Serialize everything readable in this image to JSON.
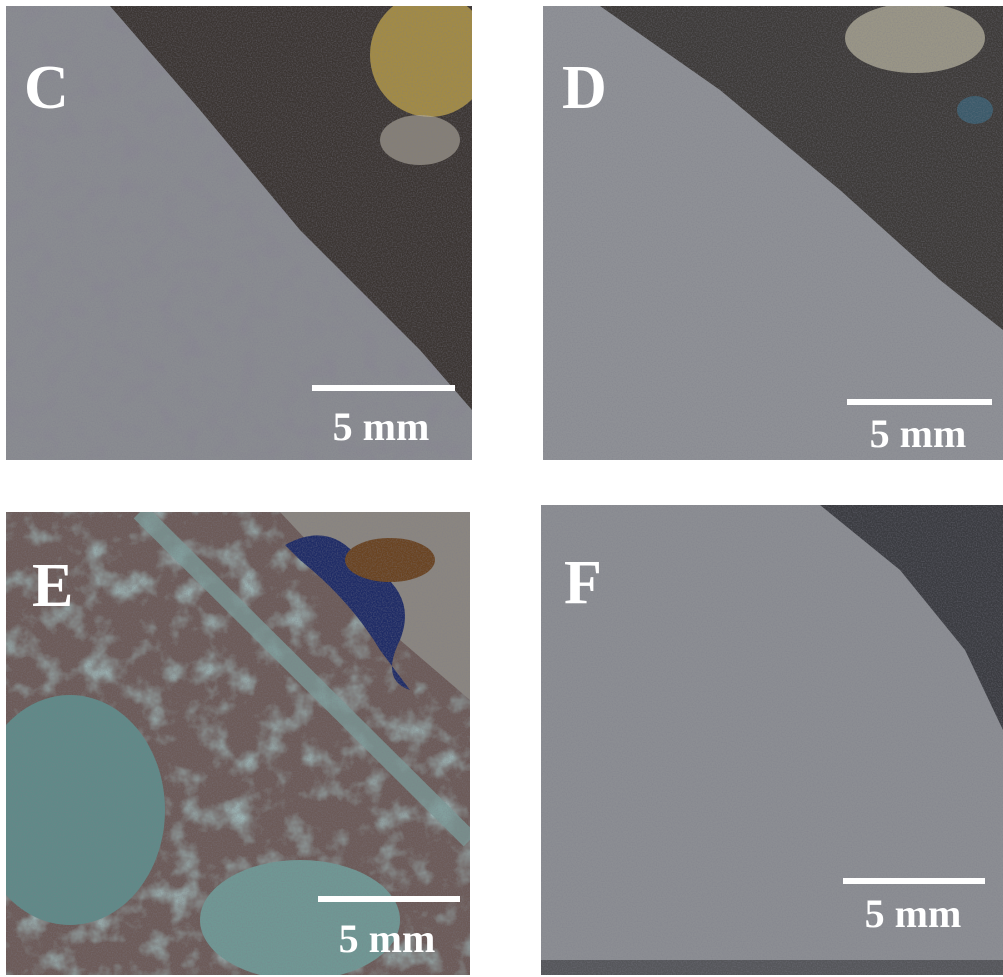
{
  "panels": [
    {
      "label": "C",
      "scale": "5 mm"
    },
    {
      "label": "D",
      "scale": "5 mm"
    },
    {
      "label": "E",
      "scale": "5 mm"
    },
    {
      "label": "F",
      "scale": "5 mm"
    }
  ]
}
